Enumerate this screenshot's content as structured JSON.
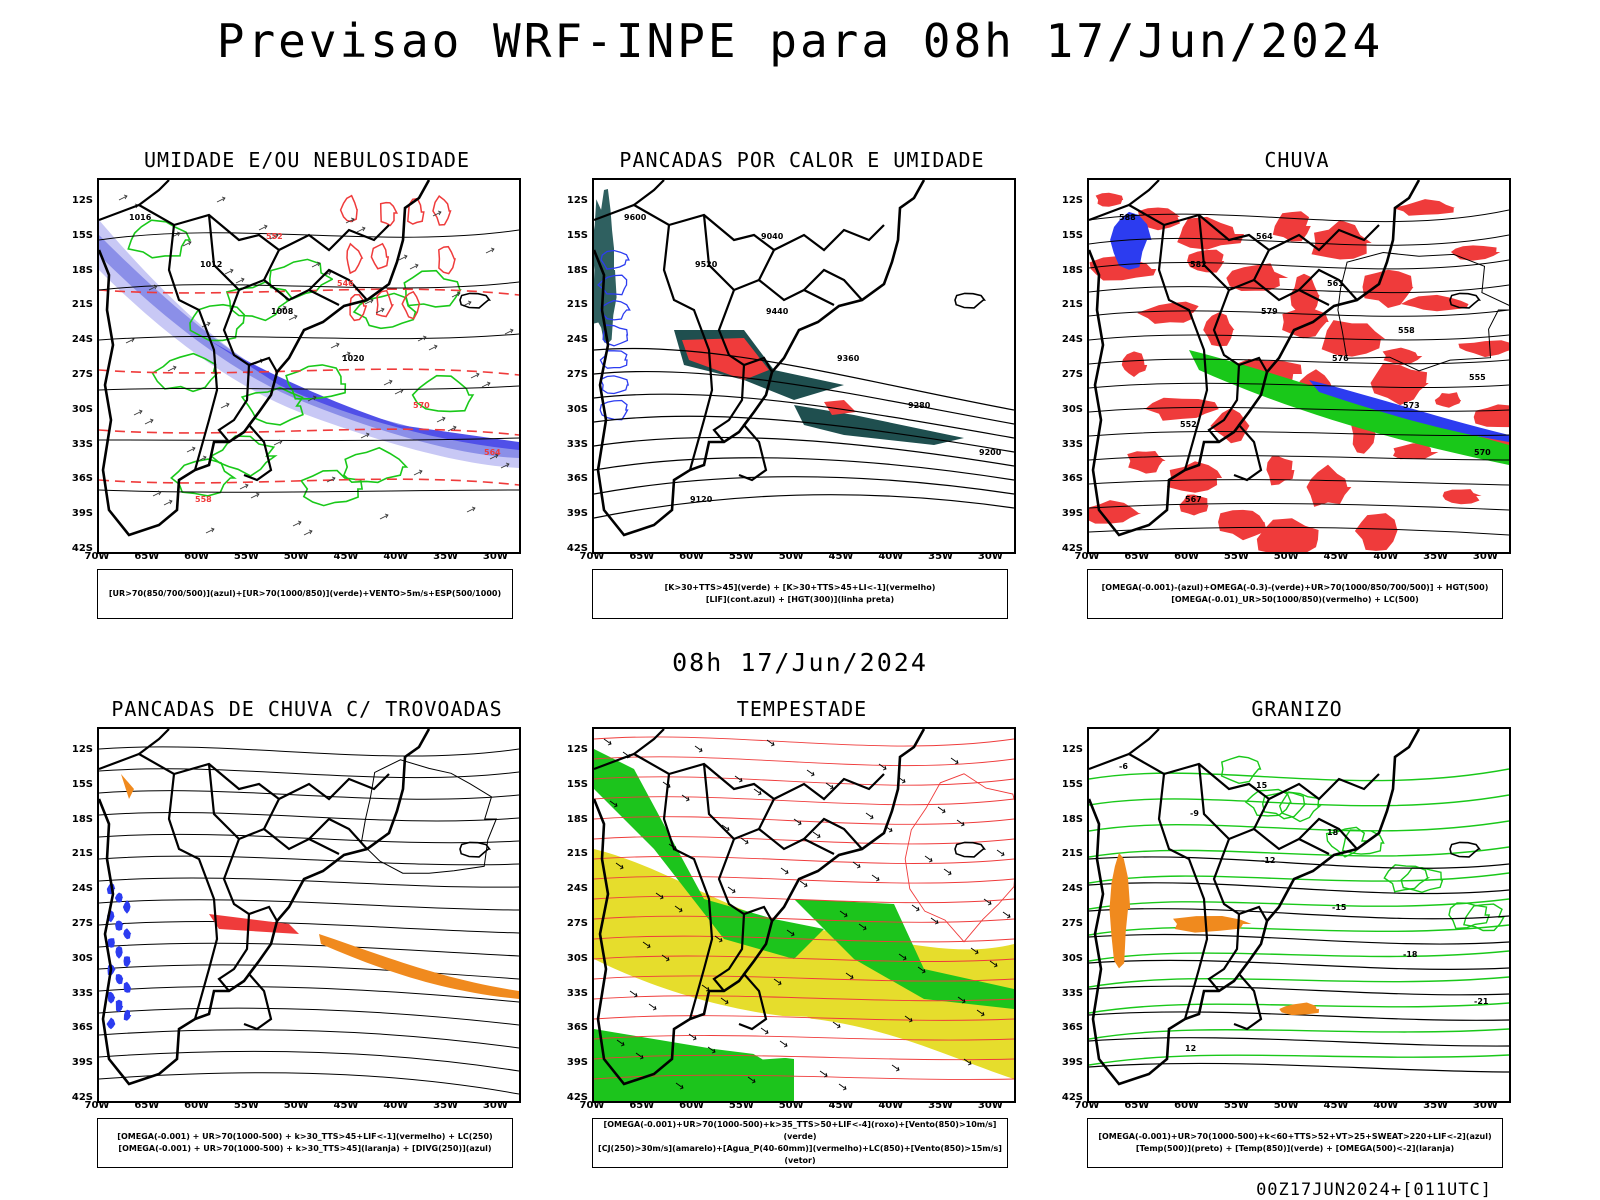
{
  "title": "Previsao WRF-INPE  para 08h 17/Jun/2024",
  "mid_title": "08h 17/Jun/2024",
  "footer": "00Z17JUN2024+[011UTC]",
  "lat_ticks": [
    "12S",
    "15S",
    "18S",
    "21S",
    "24S",
    "27S",
    "30S",
    "33S",
    "36S",
    "39S",
    "42S"
  ],
  "lon_ticks": [
    "70W",
    "65W",
    "60W",
    "55W",
    "50W",
    "45W",
    "40W",
    "35W",
    "30W"
  ],
  "colors": {
    "red": "#ef3b3b",
    "green": "#19c819",
    "blue": "#2c3cf0",
    "teal": "#1f4f4f",
    "yellow": "#e6dd2c",
    "orange": "#f08a1e",
    "lightblue": "#8b8fe8"
  },
  "panels": [
    {
      "id": "umidade",
      "title": "UMIDADE E/OU NEBULOSIDADE",
      "legend": [
        "[UR>70(850/700/500)](azul)+[UR>70(1000/850)](verde)+VENTO>5m/s+ESP(500/1000)"
      ],
      "contour_labels": [
        "1016",
        "1012",
        "1008",
        "1020",
        "570",
        "564",
        "558",
        "552",
        "546"
      ]
    },
    {
      "id": "pancadas-calor",
      "title": "PANCADAS POR CALOR E UMIDADE",
      "legend": [
        "[K>30+TTS>45](verde) + [K>30+TTS>45+LI<-1](vermelho)",
        "[LIF](cont.azul) + [HGT(300)](linha preta)"
      ],
      "contour_labels": [
        "9600",
        "9520",
        "9440",
        "9360",
        "9280",
        "9200",
        "9120",
        "9040"
      ]
    },
    {
      "id": "chuva",
      "title": "CHUVA",
      "legend": [
        "[OMEGA(-0.001)-(azul)+OMEGA(-0.3)-(verde)+UR>70(1000/850/700/500)] + HGT(500)",
        "[OMEGA(-0.01)_UR>50(1000/850)(vermelho) + LC(500)"
      ],
      "contour_labels": [
        "588",
        "582",
        "579",
        "576",
        "573",
        "570",
        "567",
        "564",
        "561",
        "558",
        "555",
        "552"
      ]
    },
    {
      "id": "trovoadas",
      "title": "PANCADAS DE CHUVA C/ TROVOADAS",
      "legend": [
        "[OMEGA(-0.001) + UR>70(1000-500) + k>30_TTS>45+LIF<-1](vermelho) + LC(250)",
        "[OMEGA(-0.001) + UR>70(1000-500) + k>30_TTS>45](laranja) + [DIVG(250)](azul)"
      ],
      "contour_labels": []
    },
    {
      "id": "tempestade",
      "title": "TEMPESTADE",
      "legend": [
        "[OMEGA(-0.001)+UR>70(1000-500)+k>35_TTS>50+LIF<-4](roxo)+[Vento(850)>10m/s](verde)",
        "[CJ(250)>30m/s](amarelo)+[Agua_P(40-60mm)](vermelho)+LC(850)+[Vento(850)>15m/s](vetor)"
      ],
      "contour_labels": []
    },
    {
      "id": "granizo",
      "title": "GRANIZO",
      "legend": [
        "[OMEGA(-0.001)+UR>70(1000-500)+k<60+TTS>52+VT>25+SWEAT>220+LIF<-2](azul)",
        "[Temp(500)](preto) + [Temp(850)](verde) + [OMEGA(500)<-2](laranja)"
      ],
      "contour_labels": [
        "-6",
        "-9",
        "-12",
        "-15",
        "-18",
        "-21",
        "12",
        "15",
        "18"
      ]
    }
  ]
}
